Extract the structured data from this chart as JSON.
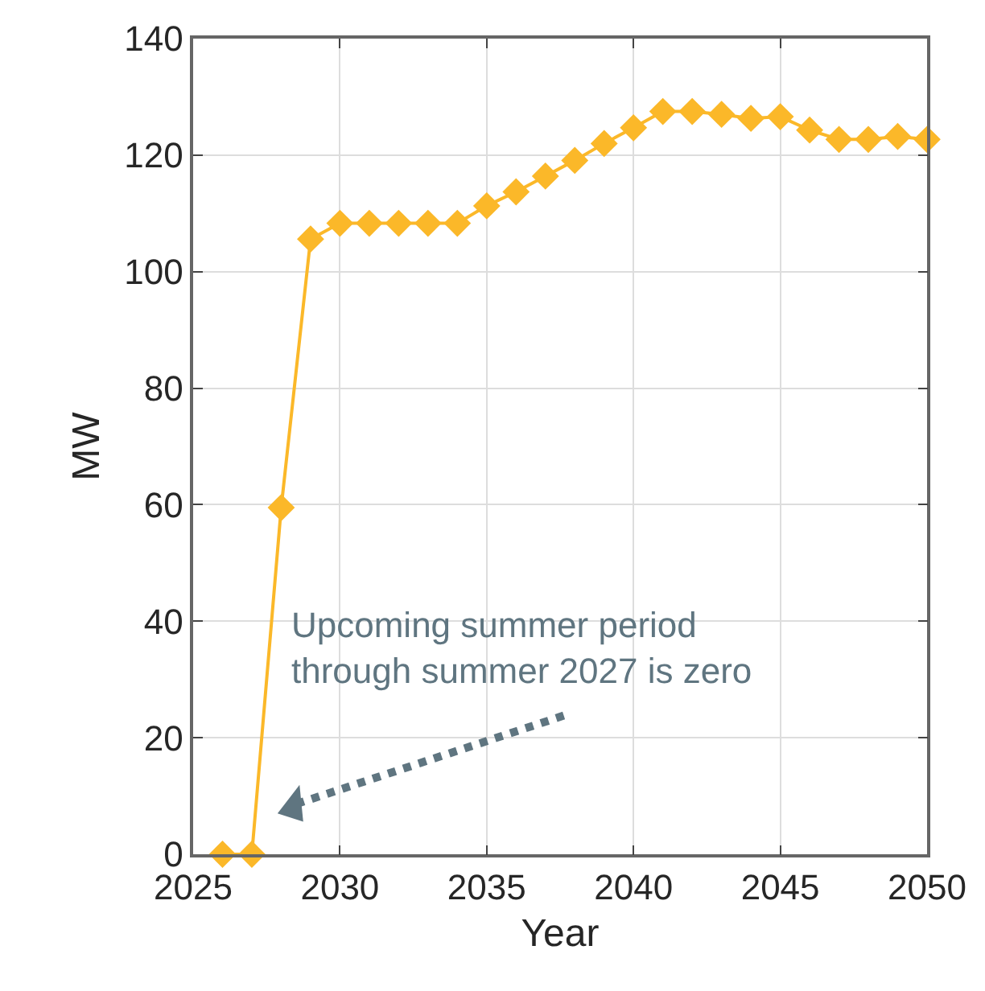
{
  "chart_data": {
    "type": "line",
    "xlabel": "Year",
    "ylabel": "MW",
    "x": [
      2026,
      2027,
      2028,
      2029,
      2030,
      2031,
      2032,
      2033,
      2034,
      2035,
      2036,
      2037,
      2038,
      2039,
      2040,
      2041,
      2042,
      2043,
      2044,
      2045,
      2046,
      2047,
      2048,
      2049,
      2050
    ],
    "series": [
      {
        "color": "#fbb829",
        "values": [
          0,
          0,
          59.5,
          105.6,
          108.3,
          108.3,
          108.3,
          108.3,
          108.3,
          111.3,
          113.7,
          116.4,
          119.1,
          122.0,
          124.7,
          127.5,
          127.5,
          127.0,
          126.3,
          126.6,
          124.3,
          122.7,
          122.7,
          123.2,
          122.7
        ]
      }
    ],
    "xlim": [
      2025,
      2050
    ],
    "xticks": [
      2025,
      2030,
      2035,
      2040,
      2045,
      2050
    ],
    "ylim": [
      0,
      140
    ],
    "yticks": [
      0,
      20,
      40,
      60,
      80,
      100,
      120,
      140
    ],
    "grid": true,
    "marker": "diamond",
    "line_style": "solid",
    "annotations": [
      "Upcoming summer period\nthrough summer 2027 is zero"
    ]
  }
}
